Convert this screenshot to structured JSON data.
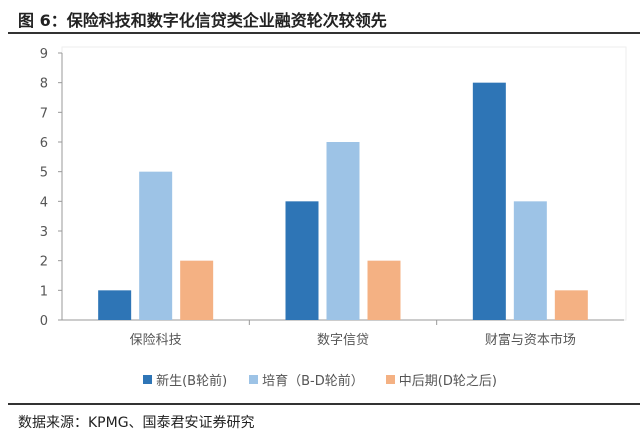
{
  "title": "图 6：保险科技和数字化信贷类企业融资轮次较领先",
  "source": "数据来源：KPMG、国泰君安证券研究",
  "chart_data": {
    "type": "bar",
    "title": "图 6：保险科技和数字化信贷类企业融资轮次较领先",
    "categories": [
      "保险科技",
      "数字信贷",
      "财富与资本市场"
    ],
    "series": [
      {
        "name": "新生(B轮前)",
        "values": [
          1,
          4,
          8
        ],
        "color": "#2e75b6"
      },
      {
        "name": "培育（B-D轮前）",
        "values": [
          5,
          6,
          4
        ],
        "color": "#9dc3e6"
      },
      {
        "name": "中后期(D轮之后)",
        "values": [
          2,
          2,
          1
        ],
        "color": "#f4b183"
      }
    ],
    "ylim": [
      0,
      9
    ],
    "yticks": [
      0,
      1,
      2,
      3,
      4,
      5,
      6,
      7,
      8,
      9
    ],
    "xlabel": "",
    "ylabel": "",
    "grid": false,
    "legend": "bottom"
  }
}
